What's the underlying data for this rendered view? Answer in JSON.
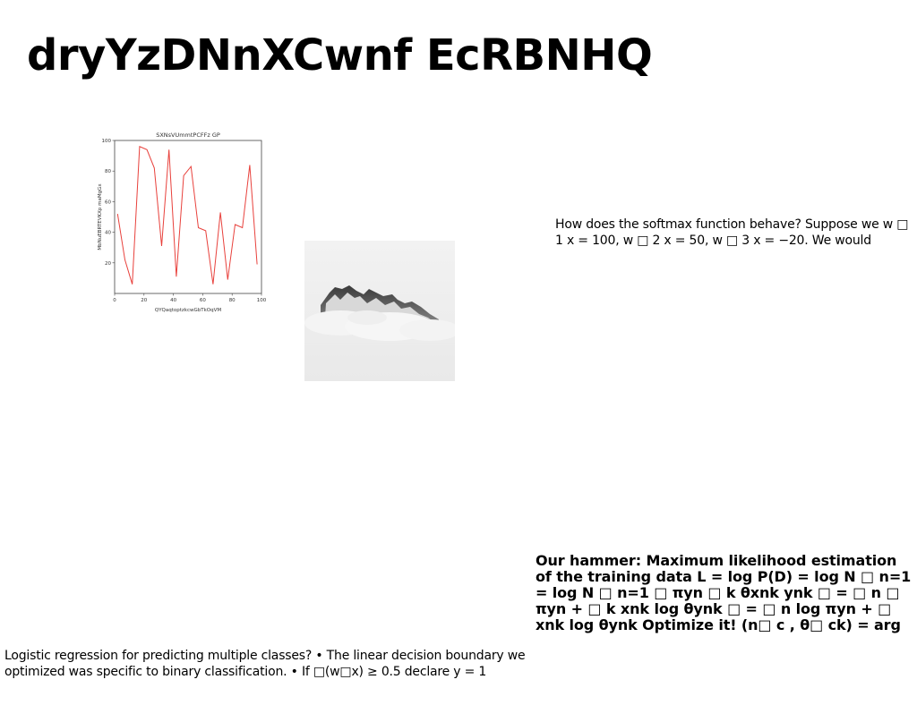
{
  "slide": {
    "title": "dryYzDNnXCwnf EcRBNHQ"
  },
  "text_blocks": {
    "softmax": "How does the softmax function behave? Suppose we w □ 1 x = 100, w □ 2 x = 50, w □ 3 x = −20. We would",
    "mle": "Our hammer: Maximum likelihood estimation of the training data L = log P(D) = log N □ n=1 = log N □ n=1 □ πyn □ k θxnk ynk □ = □ n □ πyn + □ k xnk log θynk □ = □ n log πyn + □ xnk log θynk Optimize it! (n□ c , θ□ ck) = arg",
    "logistic": "Logistic regression for predicting multiple classes? • The linear decision boundary we optimized was specific to binary classification. • If □(w□x) ≥ 0.5 declare y = 1"
  },
  "images": {
    "photo_icon": "snowy-mountain-peaks-in-clouds"
  },
  "chart_data": {
    "type": "line",
    "title": "SXNsVUmmtPCFFz GP",
    "xlabel": "QYQaqtoptzkcwGbTkOqVM",
    "ylabel": "MbNuEBRTEVKXp maMgGx",
    "xlim": [
      0,
      100
    ],
    "ylim": [
      0,
      100
    ],
    "xticks": [
      0,
      20,
      40,
      60,
      80,
      100
    ],
    "yticks": [
      20,
      40,
      60,
      80,
      100
    ],
    "grid": false,
    "color": "#e8413c",
    "series": [
      {
        "x": [
          2,
          7,
          12,
          17,
          22,
          27,
          32,
          37,
          42,
          47,
          52,
          57,
          62,
          67,
          72,
          77,
          82,
          87,
          92,
          97
        ],
        "values": [
          52,
          22,
          6,
          96,
          94,
          82,
          31,
          94,
          11,
          77,
          83,
          43,
          41,
          6,
          53,
          9,
          45,
          43,
          84,
          19
        ]
      }
    ]
  }
}
